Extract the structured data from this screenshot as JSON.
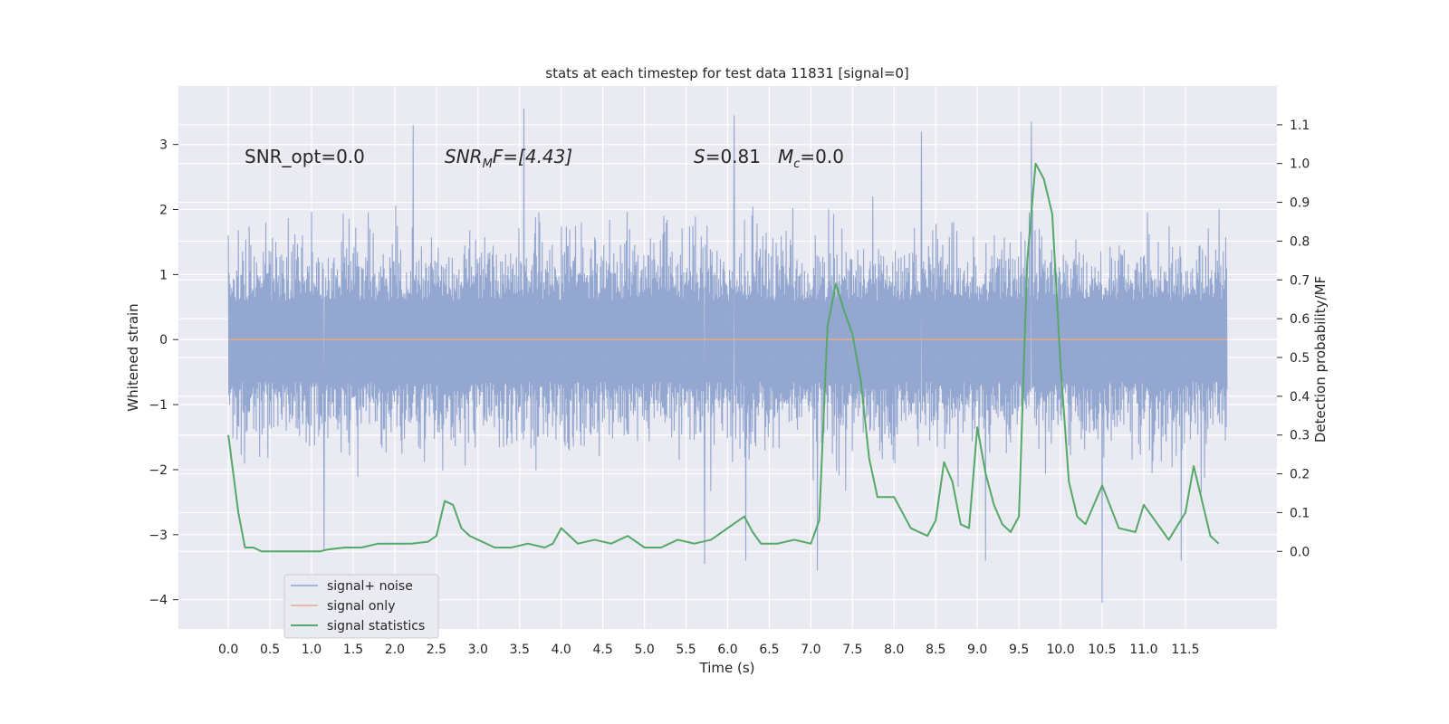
{
  "chart_data": {
    "type": "line",
    "title": "stats at each timestep for test data 11831 [signal=0]",
    "xlabel": "Time (s)",
    "ylabel": "Whitened strain",
    "y2label": "Detection probability/MF",
    "xlim": [
      -0.6,
      12.6
    ],
    "ylim": [
      -4.45,
      3.9
    ],
    "y2lim": [
      -0.2,
      1.2
    ],
    "x_ticks": [
      0.0,
      0.5,
      1.0,
      1.5,
      2.0,
      2.5,
      3.0,
      3.5,
      4.0,
      4.5,
      5.0,
      5.5,
      6.0,
      6.5,
      7.0,
      7.5,
      8.0,
      8.5,
      9.0,
      9.5,
      10.0,
      10.5,
      11.0,
      11.5
    ],
    "x_tick_labels": [
      "0.0",
      "0.5",
      "1.0",
      "1.5",
      "2.0",
      "2.5",
      "3.0",
      "3.5",
      "4.0",
      "4.5",
      "5.0",
      "5.5",
      "6.0",
      "6.5",
      "7.0",
      "7.5",
      "8.0",
      "8.5",
      "9.0",
      "9.5",
      "10.0",
      "10.5",
      "11.0",
      "11.5"
    ],
    "y_ticks": [
      3,
      2,
      1,
      0,
      -1,
      -2,
      -3,
      -4
    ],
    "y_tick_labels": [
      "3",
      "2",
      "1",
      "0",
      "−1",
      "−2",
      "−3",
      "−4"
    ],
    "y2_ticks": [
      1.1,
      1.0,
      0.9,
      0.8,
      0.7,
      0.6,
      0.5,
      0.4,
      0.3,
      0.2,
      0.1,
      0.0
    ],
    "y2_tick_labels": [
      "1.1",
      "1.0",
      "0.9",
      "0.8",
      "0.7",
      "0.6",
      "0.5",
      "0.4",
      "0.3",
      "0.2",
      "0.1",
      "0.0"
    ],
    "grid": true,
    "legend_position": "lower-left",
    "annotations": {
      "snr_opt": "SNR_opt=0.0",
      "snr_mf_sym": "SNR",
      "snr_mf_sub": "M",
      "snr_mf_rest": "F=[4.43]",
      "s_sym": "S",
      "s_rest": "=0.81",
      "mc_sym": "M",
      "mc_sub": "c",
      "mc_rest": "=0.0"
    },
    "series": [
      {
        "name": "signal+ noise",
        "color": "#8fa3cd",
        "axis": "left",
        "x_range": [
          0.0,
          12.0
        ],
        "envelope": {
          "typical_amplitude": 1.6,
          "max": 3.55,
          "min": -4.05
        },
        "spikes": [
          {
            "x": 3.55,
            "y": 3.55
          },
          {
            "x": 6.08,
            "y": 3.45
          },
          {
            "x": 8.33,
            "y": 3.2
          },
          {
            "x": 9.65,
            "y": 3.35
          },
          {
            "x": 2.22,
            "y": 3.3
          },
          {
            "x": 10.5,
            "y": -4.05
          },
          {
            "x": 5.72,
            "y": -3.45
          },
          {
            "x": 6.22,
            "y": -3.4
          },
          {
            "x": 7.08,
            "y": -3.55
          },
          {
            "x": 9.1,
            "y": -3.4
          },
          {
            "x": 11.45,
            "y": -3.4
          },
          {
            "x": 1.15,
            "y": -3.25
          }
        ]
      },
      {
        "name": "signal only",
        "color": "#e8a98a",
        "axis": "left",
        "x": [
          0.0,
          12.0
        ],
        "y": [
          0.0,
          0.0
        ]
      },
      {
        "name": "signal statistics",
        "color": "#55a868",
        "axis": "right",
        "x": [
          0.0,
          0.12,
          0.2,
          0.3,
          0.4,
          0.5,
          0.6,
          0.8,
          1.0,
          1.1,
          1.2,
          1.4,
          1.6,
          1.8,
          2.0,
          2.2,
          2.4,
          2.5,
          2.6,
          2.7,
          2.8,
          2.9,
          3.0,
          3.2,
          3.4,
          3.6,
          3.8,
          3.9,
          4.0,
          4.1,
          4.2,
          4.4,
          4.6,
          4.8,
          5.0,
          5.2,
          5.4,
          5.6,
          5.8,
          6.0,
          6.2,
          6.3,
          6.4,
          6.6,
          6.8,
          7.0,
          7.1,
          7.2,
          7.3,
          7.4,
          7.5,
          7.6,
          7.7,
          7.8,
          8.0,
          8.2,
          8.4,
          8.5,
          8.6,
          8.7,
          8.8,
          8.9,
          9.0,
          9.1,
          9.2,
          9.3,
          9.4,
          9.5,
          9.6,
          9.7,
          9.8,
          9.9,
          10.0,
          10.1,
          10.2,
          10.3,
          10.5,
          10.7,
          10.9,
          11.0,
          11.2,
          11.3,
          11.5,
          11.6,
          11.8,
          11.9
        ],
        "y": [
          0.3,
          0.1,
          0.01,
          0.01,
          0.0,
          0.0,
          0.0,
          0.0,
          0.0,
          0.0,
          0.005,
          0.01,
          0.01,
          0.02,
          0.02,
          0.02,
          0.025,
          0.04,
          0.13,
          0.12,
          0.06,
          0.04,
          0.03,
          0.01,
          0.01,
          0.02,
          0.01,
          0.02,
          0.06,
          0.04,
          0.02,
          0.03,
          0.02,
          0.04,
          0.01,
          0.01,
          0.03,
          0.02,
          0.03,
          0.06,
          0.09,
          0.05,
          0.02,
          0.02,
          0.03,
          0.02,
          0.08,
          0.58,
          0.69,
          0.62,
          0.56,
          0.44,
          0.24,
          0.14,
          0.14,
          0.06,
          0.04,
          0.08,
          0.23,
          0.18,
          0.07,
          0.06,
          0.32,
          0.2,
          0.12,
          0.07,
          0.05,
          0.09,
          0.75,
          1.0,
          0.96,
          0.87,
          0.48,
          0.18,
          0.09,
          0.07,
          0.17,
          0.06,
          0.05,
          0.12,
          0.06,
          0.03,
          0.1,
          0.22,
          0.04,
          0.02
        ]
      }
    ]
  }
}
